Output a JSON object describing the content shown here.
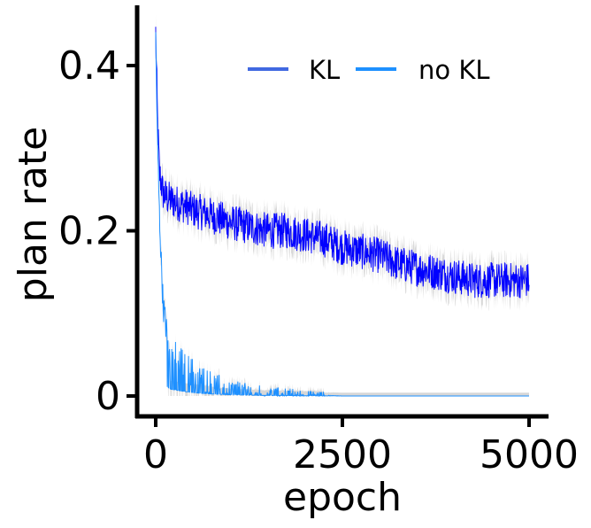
{
  "chart_data": {
    "type": "line",
    "title": "",
    "xlabel": "epoch",
    "ylabel": "plan rate",
    "xlim": [
      -250,
      5250
    ],
    "ylim": [
      -0.028,
      0.47
    ],
    "xticks": [
      0,
      2500,
      5000
    ],
    "xtick_labels": [
      "0",
      "2500",
      "5000"
    ],
    "yticks": [
      0,
      0.2,
      0.4
    ],
    "ytick_labels": [
      "0",
      "0.2",
      "0.4"
    ],
    "legend": {
      "placement": "top-right",
      "columns": 2
    },
    "series": [
      {
        "name": "KL",
        "color": "#0000ff",
        "legend_color": "#4169e1",
        "shaded_band": "#d3d3d3",
        "x": [
          0,
          25,
          50,
          100,
          150,
          250,
          400,
          500,
          700,
          1000,
          1250,
          1500,
          1750,
          2000,
          2250,
          2500,
          2750,
          3000,
          3250,
          3500,
          3750,
          4000,
          4250,
          4500,
          4750,
          5000
        ],
        "y": [
          0.44,
          0.33,
          0.27,
          0.245,
          0.24,
          0.235,
          0.23,
          0.225,
          0.22,
          0.21,
          0.205,
          0.2,
          0.2,
          0.195,
          0.19,
          0.18,
          0.175,
          0.17,
          0.16,
          0.155,
          0.15,
          0.145,
          0.14,
          0.14,
          0.14,
          0.14
        ],
        "noise_amplitude": 0.022
      },
      {
        "name": "no KL",
        "color": "#1e90ff",
        "legend_color": "#1e90ff",
        "shaded_band": "#d3d3d3",
        "x": [
          0,
          25,
          50,
          75,
          100,
          150,
          200,
          300,
          400,
          500,
          600,
          800,
          1000,
          1250,
          1500,
          1750,
          2000,
          2250,
          2500,
          3000,
          4000,
          5000
        ],
        "y": [
          0.43,
          0.3,
          0.22,
          0.16,
          0.11,
          0.075,
          0.055,
          0.045,
          0.035,
          0.028,
          0.022,
          0.015,
          0.01,
          0.007,
          0.005,
          0.004,
          0.002,
          0.001,
          0.0,
          0.0,
          0.0,
          0.0
        ],
        "noise_amplitude": 0.018
      }
    ]
  }
}
